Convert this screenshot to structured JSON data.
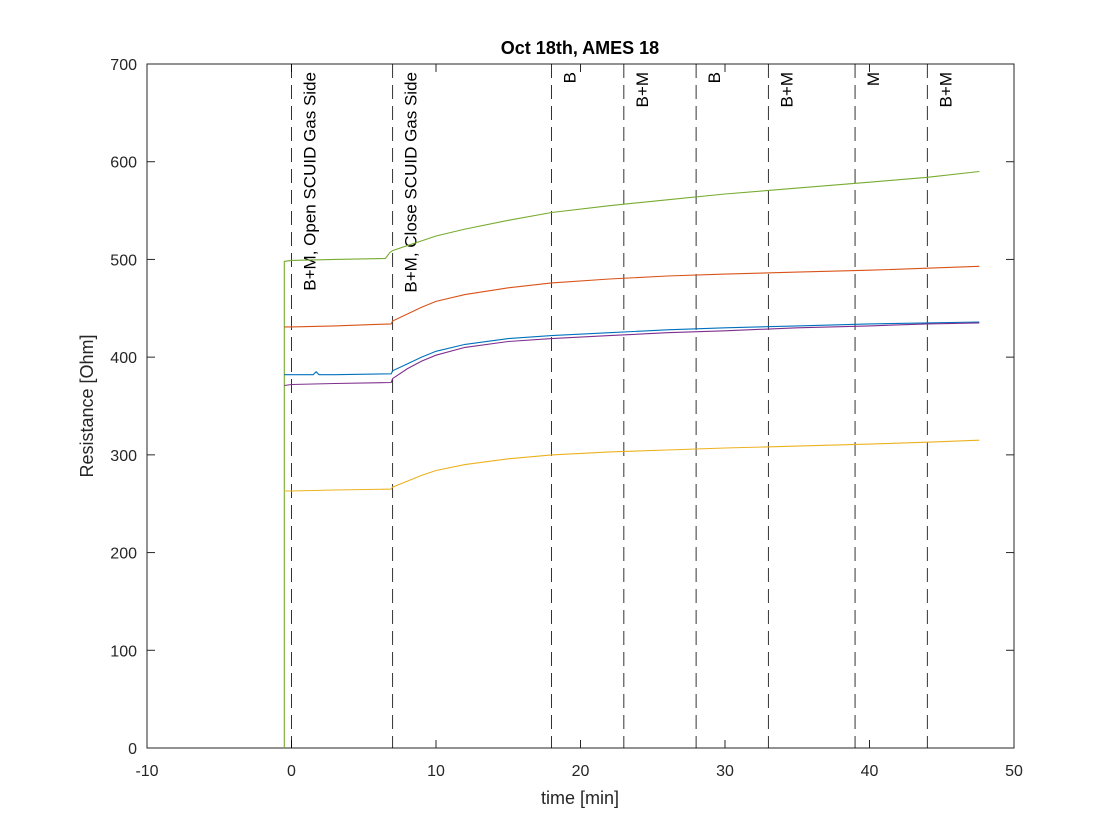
{
  "chart_data": {
    "type": "line",
    "title": "Oct 18th, AMES 18",
    "xlabel": "time [min]",
    "ylabel": "Resistance [Ohm]",
    "xlim": [
      -10,
      50
    ],
    "ylim": [
      0,
      700
    ],
    "xticks": [
      -10,
      0,
      10,
      20,
      30,
      40,
      50
    ],
    "yticks": [
      0,
      100,
      200,
      300,
      400,
      500,
      600,
      700
    ],
    "grid": false,
    "legend": "none",
    "colors": {
      "green": "#77AC30",
      "orange": "#D95319",
      "blue": "#0072BD",
      "purple": "#7E2F8E",
      "yellow": "#EDB120"
    },
    "vlines": [
      {
        "x": 0,
        "label": "B+M, Open SCUID Gas Side"
      },
      {
        "x": 7,
        "label": "B+M, Close SCUID Gas Side"
      },
      {
        "x": 18,
        "label": "B"
      },
      {
        "x": 23,
        "label": "B+M"
      },
      {
        "x": 28,
        "label": "B"
      },
      {
        "x": 33,
        "label": "B+M"
      },
      {
        "x": 39,
        "label": "M"
      },
      {
        "x": 44,
        "label": "B+M"
      }
    ],
    "series": [
      {
        "color": "green",
        "x": [
          -0.5,
          -0.5,
          0,
          3,
          6.5,
          6.8,
          7,
          8,
          9,
          10,
          12,
          15,
          18,
          22,
          26,
          30,
          35,
          40,
          44,
          47.6
        ],
        "y": [
          0,
          498,
          499,
          500,
          501,
          507,
          509,
          514,
          519,
          524,
          531,
          540,
          548,
          555,
          561,
          567,
          573,
          579,
          584,
          590
        ]
      },
      {
        "color": "orange",
        "x": [
          -0.5,
          0,
          3,
          6.9,
          7,
          8,
          9,
          10,
          12,
          15,
          18,
          22,
          26,
          30,
          35,
          40,
          44,
          47.6
        ],
        "y": [
          431,
          431,
          432,
          434,
          437,
          444,
          451,
          457,
          464,
          471,
          476,
          480,
          483,
          485,
          487,
          489,
          491,
          493
        ]
      },
      {
        "color": "blue",
        "x": [
          -0.5,
          0,
          1.5,
          1.7,
          1.9,
          3,
          6.9,
          7,
          8,
          9,
          10,
          12,
          15,
          18,
          22,
          26,
          30,
          35,
          40,
          44,
          47.6
        ],
        "y": [
          382,
          382,
          382,
          385,
          382,
          382,
          383,
          386,
          393,
          400,
          406,
          413,
          419,
          422,
          425,
          428,
          430,
          432,
          434,
          435,
          436
        ]
      },
      {
        "color": "purple",
        "x": [
          -0.5,
          0,
          3,
          6.9,
          7,
          8,
          9,
          10,
          12,
          15,
          18,
          22,
          26,
          30,
          35,
          40,
          44,
          47.6
        ],
        "y": [
          371,
          372,
          373,
          374,
          378,
          388,
          396,
          402,
          410,
          416,
          419,
          422,
          425,
          427,
          430,
          432,
          434,
          435
        ]
      },
      {
        "color": "yellow",
        "x": [
          -0.5,
          0,
          3,
          6.9,
          7,
          8,
          9,
          10,
          12,
          15,
          18,
          22,
          26,
          30,
          35,
          40,
          44,
          47.6
        ],
        "y": [
          263,
          263,
          264,
          265,
          267,
          273,
          279,
          284,
          290,
          296,
          300,
          303,
          305,
          307,
          309,
          311,
          313,
          315
        ]
      }
    ]
  }
}
